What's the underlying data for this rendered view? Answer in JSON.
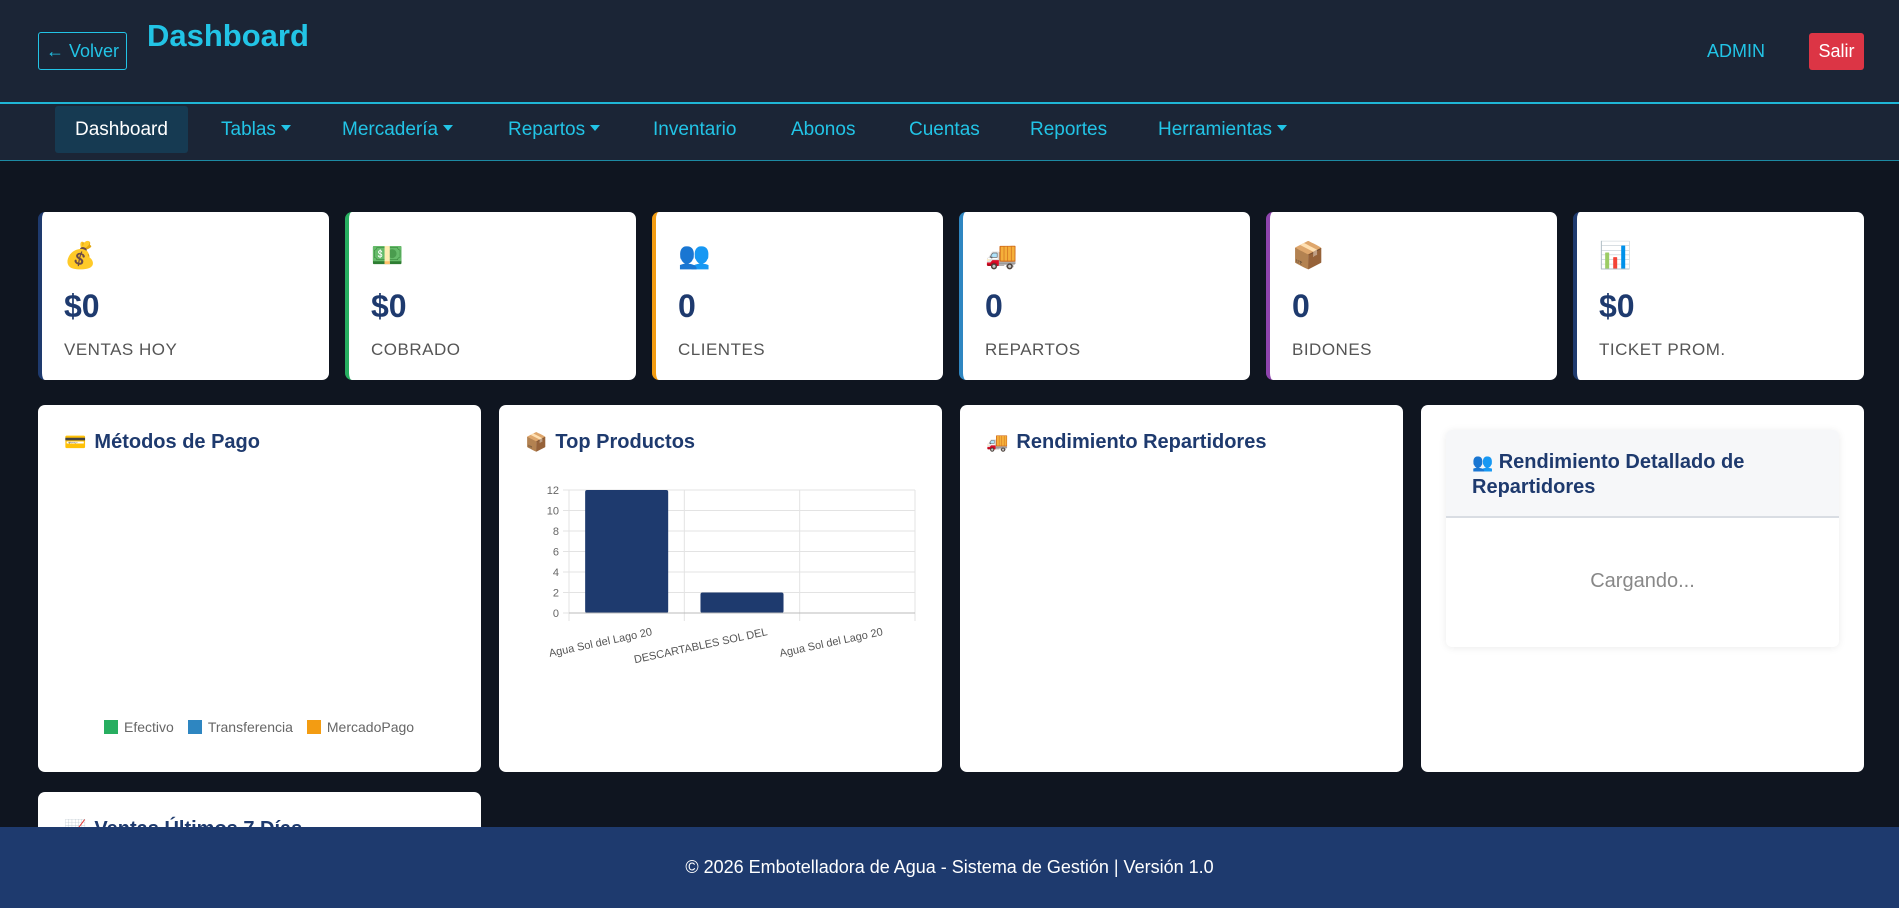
{
  "header": {
    "back_label": "← Volver",
    "title": "Dashboard",
    "user": "ADMIN",
    "logout_label": "Salir"
  },
  "nav": {
    "items": [
      {
        "label": "Dashboard",
        "dropdown": false,
        "active": true
      },
      {
        "label": "Tablas",
        "dropdown": true
      },
      {
        "label": "Mercadería",
        "dropdown": true
      },
      {
        "label": "Repartos",
        "dropdown": true
      },
      {
        "label": "Inventario",
        "dropdown": false
      },
      {
        "label": "Abonos",
        "dropdown": false
      },
      {
        "label": "Cuentas",
        "dropdown": false
      },
      {
        "label": "Reportes",
        "dropdown": false
      },
      {
        "label": "Herramientas",
        "dropdown": true
      }
    ]
  },
  "stats": [
    {
      "icon": "money-bag-icon",
      "glyph": "💰",
      "value": "$0",
      "label": "VENTAS HOY",
      "accent": "#1e3a6e"
    },
    {
      "icon": "banknote-icon",
      "glyph": "💵",
      "value": "$0",
      "label": "COBRADO",
      "accent": "#27ae60"
    },
    {
      "icon": "users-icon",
      "glyph": "👥",
      "value": "0",
      "label": "CLIENTES",
      "accent": "#f39c12"
    },
    {
      "icon": "truck-icon",
      "glyph": "🚚",
      "value": "0",
      "label": "REPARTOS",
      "accent": "#2e86c1"
    },
    {
      "icon": "box-icon",
      "glyph": "📦",
      "value": "0",
      "label": "BIDONES",
      "accent": "#8e44ad"
    },
    {
      "icon": "bar-chart-icon",
      "glyph": "📊",
      "value": "$0",
      "label": "TICKET PROM.",
      "accent": "#1e3a6e"
    }
  ],
  "panels": {
    "payment_methods": {
      "icon": "credit-card-icon",
      "glyph": "💳",
      "title": "Métodos de Pago",
      "legend": [
        {
          "label": "Efectivo",
          "color": "#27ae60"
        },
        {
          "label": "Transferencia",
          "color": "#2e86c1"
        },
        {
          "label": "MercadoPago",
          "color": "#f39c12"
        }
      ]
    },
    "top_products": {
      "icon": "box-icon",
      "glyph": "📦",
      "title": "Top Productos"
    },
    "delivery_performance": {
      "icon": "truck-icon",
      "glyph": "🚚",
      "title": "Rendimiento Repartidores"
    },
    "detailed_performance": {
      "icon": "users-icon",
      "glyph": "👥",
      "title": "Rendimiento Detallado de Repartidores",
      "loading": "Cargando..."
    },
    "last_days": {
      "icon": "chart-icon",
      "glyph": "📈",
      "title": "Ventas Últimos 7 Días"
    }
  },
  "chart_data": {
    "type": "bar",
    "categories": [
      "Agua Sol del Lago 20",
      "DESCARTABLES SOL DEL",
      "Agua Sol del Lago 20"
    ],
    "values": [
      12,
      2,
      0
    ],
    "yticks": [
      0,
      2,
      4,
      6,
      8,
      10,
      12
    ],
    "ylim": [
      0,
      12
    ],
    "bar_color": "#1e3a6e",
    "grid": true
  },
  "footer": {
    "text": "© 2026 Embotelladora de Agua - Sistema de Gestión | Versión 1.0"
  }
}
